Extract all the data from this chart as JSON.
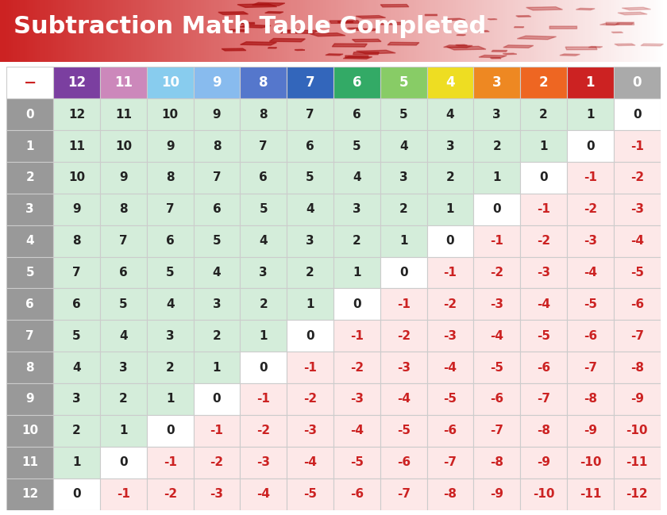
{
  "title": "Subtraction Math Table Completed",
  "title_fontsize": 22,
  "title_color": "white",
  "title_bg_color": "#cc2222",
  "header_cols": [
    "12",
    "11",
    "10",
    "9",
    "8",
    "7",
    "6",
    "5",
    "4",
    "3",
    "2",
    "1",
    "0"
  ],
  "header_colors": [
    "#7b3fa0",
    "#cc88bb",
    "#88ccee",
    "#88bbee",
    "#5577cc",
    "#3366bb",
    "#33aa66",
    "#88cc66",
    "#eedd22",
    "#ee8822",
    "#ee6622",
    "#cc2222",
    "#aaaaaa"
  ],
  "row_labels": [
    "0",
    "1",
    "2",
    "3",
    "4",
    "5",
    "6",
    "7",
    "8",
    "9",
    "10",
    "11",
    "12"
  ],
  "row_label_color": "#888888",
  "minus_color": "#cc2222",
  "cell_bg_positive": "#d4edda",
  "cell_bg_zero": "#ffffff",
  "cell_bg_negative": "#fde8e8",
  "grid_color": "#cccccc",
  "fig_bg": "#ffffff",
  "font_color_positive": "#222222",
  "font_color_negative": "#cc2222",
  "font_color_zero": "#222222",
  "font_size_cell": 11,
  "font_size_header": 12,
  "font_size_row_label": 11
}
